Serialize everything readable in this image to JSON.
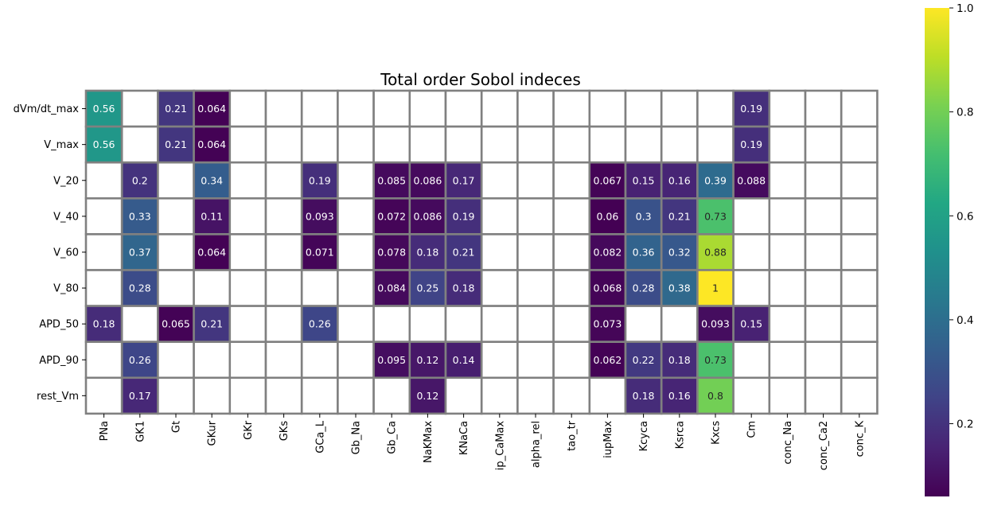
{
  "chart_data": {
    "type": "heatmap",
    "title": "Total order Sobol indeces",
    "rows": [
      "dVm/dt_max",
      "V_max",
      "V_20",
      "V_40",
      "V_60",
      "V_80",
      "APD_50",
      "APD_90",
      "rest_Vm"
    ],
    "columns": [
      "PNa",
      "GK1",
      "Gt",
      "GKur",
      "GKr",
      "GKs",
      "GCa_L",
      "Gb_Na",
      "Gb_Ca",
      "NaKMax",
      "KNaCa",
      "ip_CaMax",
      "alpha_rel",
      "tao_tr",
      "iupMax",
      "Kcyca",
      "Ksrca",
      "Kxcs",
      "Cm",
      "conc_Na",
      "conc_Ca2",
      "conc_K"
    ],
    "values": [
      [
        0.56,
        null,
        0.21,
        0.064,
        null,
        null,
        null,
        null,
        null,
        null,
        null,
        null,
        null,
        null,
        null,
        null,
        null,
        null,
        0.19,
        null,
        null,
        null
      ],
      [
        0.56,
        null,
        0.21,
        0.064,
        null,
        null,
        null,
        null,
        null,
        null,
        null,
        null,
        null,
        null,
        null,
        null,
        null,
        null,
        0.19,
        null,
        null,
        null
      ],
      [
        null,
        0.2,
        null,
        0.34,
        null,
        null,
        0.19,
        null,
        0.085,
        0.086,
        0.17,
        null,
        null,
        null,
        0.067,
        0.15,
        0.16,
        0.39,
        0.088,
        null,
        null,
        null
      ],
      [
        null,
        0.33,
        null,
        0.11,
        null,
        null,
        0.093,
        null,
        0.072,
        0.086,
        0.19,
        null,
        null,
        null,
        0.06,
        0.3,
        0.21,
        0.73,
        null,
        null,
        null,
        null
      ],
      [
        null,
        0.37,
        null,
        0.064,
        null,
        null,
        0.071,
        null,
        0.078,
        0.18,
        0.21,
        null,
        null,
        null,
        0.082,
        0.36,
        0.32,
        0.88,
        null,
        null,
        null,
        null
      ],
      [
        null,
        0.28,
        null,
        null,
        null,
        null,
        null,
        null,
        0.084,
        0.25,
        0.18,
        null,
        null,
        null,
        0.068,
        0.28,
        0.38,
        1,
        null,
        null,
        null,
        null
      ],
      [
        0.18,
        null,
        0.065,
        0.21,
        null,
        null,
        0.26,
        null,
        null,
        null,
        null,
        null,
        null,
        null,
        0.073,
        null,
        null,
        0.093,
        0.15,
        null,
        null,
        null
      ],
      [
        null,
        0.26,
        null,
        null,
        null,
        null,
        null,
        null,
        0.095,
        0.12,
        0.14,
        null,
        null,
        null,
        0.062,
        0.22,
        0.18,
        0.73,
        null,
        null,
        null,
        null
      ],
      [
        null,
        0.17,
        null,
        null,
        null,
        null,
        null,
        null,
        null,
        0.12,
        null,
        null,
        null,
        null,
        null,
        0.18,
        0.16,
        0.8,
        null,
        null,
        null,
        null
      ]
    ],
    "colormap": "viridis",
    "color_range": [
      0.06,
      1.0
    ],
    "colorbar_ticks": [
      0.2,
      0.4,
      0.6,
      0.8,
      1.0
    ],
    "colorbar_tick_labels": [
      "0.2",
      "0.4",
      "0.6",
      "0.8",
      "1.0"
    ],
    "grid_line_color": "#808080",
    "empty_cell_color": "#ffffff"
  }
}
